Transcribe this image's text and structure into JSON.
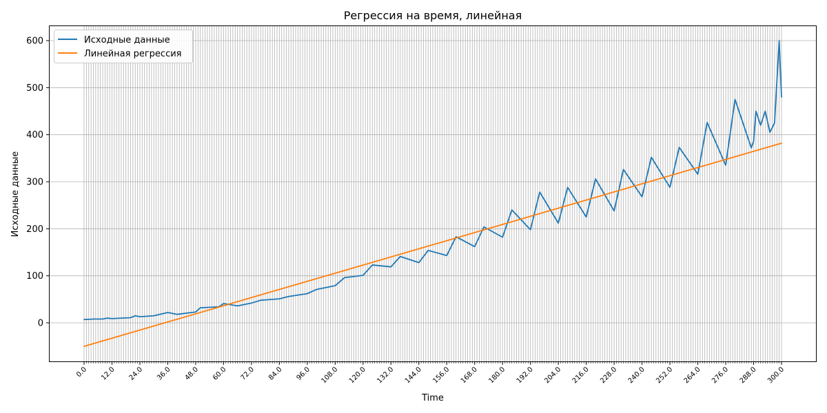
{
  "chart_data": {
    "type": "line",
    "title": "Регрессия на время, линейная",
    "xlabel": "Time",
    "ylabel": "Исходные данные",
    "xlim": [
      0,
      300
    ],
    "ylim": [
      -50,
      600
    ],
    "y_ticks": [
      0,
      100,
      200,
      300,
      400,
      500,
      600
    ],
    "x_tick_labels": [
      "0.0",
      "12.0",
      "24.0",
      "36.0",
      "48.0",
      "60.0",
      "72.0",
      "84.0",
      "96.0",
      "108.0",
      "120.0",
      "132.0",
      "144.0",
      "156.0",
      "168.0",
      "180.0",
      "192.0",
      "204.0",
      "216.0",
      "228.0",
      "240.0",
      "252.0",
      "264.0",
      "276.0",
      "288.0",
      "300.0"
    ],
    "x_tick_values": [
      0,
      12,
      24,
      36,
      48,
      60,
      72,
      84,
      96,
      108,
      120,
      132,
      144,
      156,
      168,
      180,
      192,
      204,
      216,
      228,
      240,
      252,
      264,
      276,
      288,
      300
    ],
    "grid": "on (vertical line at every integer x, horizontal at y ticks)",
    "legend_position": "upper-left",
    "series": [
      {
        "name": "Исходные данные",
        "color": "#1f77b4",
        "x": [
          0,
          4,
          8,
          10,
          12,
          20,
          22,
          24,
          30,
          36,
          40,
          48,
          50,
          58,
          60,
          66,
          72,
          76,
          84,
          88,
          96,
          100,
          108,
          112,
          120,
          124,
          132,
          136,
          144,
          148,
          156,
          160,
          168,
          172,
          180,
          184,
          192,
          196,
          204,
          208,
          216,
          220,
          228,
          232,
          240,
          244,
          252,
          256,
          264,
          268,
          276,
          280,
          287,
          288,
          289,
          291,
          293,
          295,
          297,
          299,
          300
        ],
        "y": [
          7,
          8,
          8,
          10,
          9,
          11,
          15,
          13,
          15,
          22,
          18,
          23,
          32,
          34,
          41,
          36,
          42,
          48,
          51,
          56,
          62,
          71,
          79,
          96,
          101,
          123,
          119,
          141,
          128,
          154,
          143,
          183,
          162,
          204,
          182,
          240,
          198,
          278,
          212,
          288,
          225,
          306,
          238,
          326,
          268,
          352,
          288,
          373,
          316,
          426,
          335,
          475,
          372,
          386,
          450,
          420,
          450,
          405,
          425,
          600,
          480
        ]
      },
      {
        "name": "Линейная регрессия",
        "color": "#ff7f0e",
        "x": [
          0,
          300
        ],
        "y": [
          -50,
          382
        ]
      }
    ]
  }
}
